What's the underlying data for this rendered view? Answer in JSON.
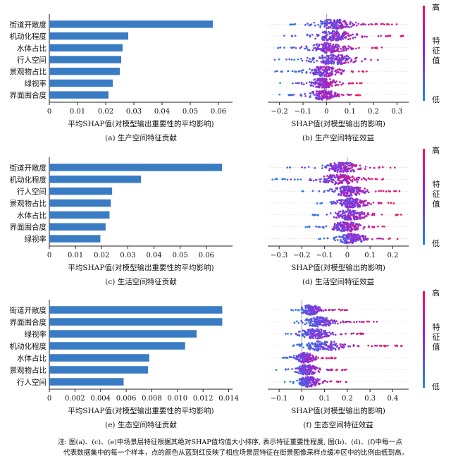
{
  "colors": {
    "bar": "#3a7cc4",
    "low": "#1f88e5",
    "high": "#ff0d57",
    "axis": "#222222"
  },
  "colorbar": {
    "high": "高",
    "mid_chars": [
      "特",
      "征",
      "值"
    ],
    "low": "低"
  },
  "note": [
    "注: 图(a)、(c)、(e)中场景层特征根据其绝对SHAP值均值大小排序, 表示特征重要性程度, 图(b)、(d)、(f)中每一点",
    "代表数据集中的每一个样本，点的颜色从蓝到红反映了相应场景层特征在街景图像采样点缓冲区中的比例由低到高。"
  ],
  "chart_data": [
    {
      "id": "a",
      "type": "bar",
      "caption": "(a) 生产空间特征贡献",
      "xlabel": "平均SHAP值(对模型输出重要性的平均影响)",
      "categories": [
        "街道开敞度",
        "机动化程度",
        "水体占比",
        "行人空间",
        "景观物占比",
        "绿视率",
        "界面围合度"
      ],
      "values": [
        0.058,
        0.028,
        0.026,
        0.0255,
        0.025,
        0.0225,
        0.021
      ],
      "xlim": [
        0,
        0.065
      ],
      "xticks": [
        0,
        0.01,
        0.02,
        0.03,
        0.04,
        0.05,
        0.06
      ],
      "xticklabels": [
        "0",
        "0.01",
        "0.02",
        "0.03",
        "0.04",
        "0.05",
        "0.06"
      ]
    },
    {
      "id": "b",
      "type": "scatter",
      "caption": "(b) 生产空间特征效益",
      "xlabel": "SHAP值(对模型输出的影响)",
      "features": [
        "街道开敞度",
        "机动化程度",
        "水体占比",
        "行人空间",
        "景观物占比",
        "绿视率",
        "界面围合度"
      ],
      "xlim": [
        -0.25,
        0.35
      ],
      "xticks": [
        -0.2,
        -0.1,
        0,
        0.1,
        0.2,
        0.3
      ],
      "xticklabels": [
        "−0.2",
        "−0.1",
        "0",
        "0.1",
        "0.2",
        "0.3"
      ],
      "ranges": [
        [
          -0.16,
          0.3
        ],
        [
          -0.2,
          0.33
        ],
        [
          -0.22,
          0.25
        ],
        [
          -0.22,
          0.35
        ],
        [
          -0.22,
          0.2
        ],
        [
          -0.2,
          0.15
        ],
        [
          -0.2,
          0.15
        ]
      ]
    },
    {
      "id": "c",
      "type": "bar",
      "caption": "(c) 生活空间特征贡献",
      "xlabel": "平均SHAP值(对模型输出重要性的平均影响)",
      "categories": [
        "街道开敞度",
        "机动化程度",
        "行人空间",
        "景观物占比",
        "水体占比",
        "界面围合度",
        "绿视率"
      ],
      "values": [
        0.066,
        0.035,
        0.024,
        0.0235,
        0.023,
        0.0215,
        0.0195
      ],
      "xlim": [
        0,
        0.07
      ],
      "xticks": [
        0,
        0.01,
        0.02,
        0.03,
        0.04,
        0.05,
        0.06
      ],
      "xticklabels": [
        "0",
        "0.01",
        "0.02",
        "0.03",
        "0.04",
        "0.05",
        "0.06"
      ]
    },
    {
      "id": "d",
      "type": "scatter",
      "caption": "(d) 生活空间特征效益",
      "xlabel": "SHAP值(对模型输出的影响)",
      "features": [
        "街道开敞度",
        "机动化程度",
        "行人空间",
        "景观物占比",
        "水体占比",
        "界面围合度",
        "绿视率"
      ],
      "xlim": [
        -0.35,
        0.27
      ],
      "xticks": [
        -0.3,
        -0.2,
        -0.1,
        0,
        0.1,
        0.2
      ],
      "xticklabels": [
        "−0.3",
        "−0.2",
        "−0.1",
        "0",
        "0.1",
        "0.2"
      ],
      "ranges": [
        [
          -0.3,
          0.24
        ],
        [
          -0.33,
          0.18
        ],
        [
          -0.2,
          0.23
        ],
        [
          -0.15,
          0.22
        ],
        [
          -0.2,
          0.25
        ],
        [
          -0.2,
          0.18
        ],
        [
          -0.15,
          0.23
        ]
      ]
    },
    {
      "id": "e",
      "type": "bar",
      "caption": "(e) 生态空间特征贡献",
      "xlabel": "平均SHAP值(对模型输出重要性的平均影响)",
      "categories": [
        "街道开敞度",
        "界面围合度",
        "绿视率",
        "机动化程度",
        "水体占比",
        "景观物占比",
        "行人空间"
      ],
      "values": [
        0.0135,
        0.0135,
        0.0115,
        0.0106,
        0.0078,
        0.0077,
        0.0058
      ],
      "xlim": [
        0,
        0.0143
      ],
      "xticks": [
        0,
        0.002,
        0.004,
        0.006,
        0.008,
        0.01,
        0.012,
        0.014
      ],
      "xticklabels": [
        "0",
        "0.002",
        "0.004",
        "0.006",
        "0.008",
        "0.010",
        "0.012",
        "0.014"
      ]
    },
    {
      "id": "f",
      "type": "scatter",
      "caption": "(f) 生态空间特征效益",
      "xlabel": "SHAP值(对模型输出的影响)",
      "features": [
        "街道开敞度",
        "界面围合度",
        "绿视率",
        "机动化程度",
        "水体占比",
        "景观物占比",
        "行人空间"
      ],
      "xlim": [
        -0.15,
        0.47
      ],
      "xticks": [
        -0.1,
        0,
        0.1,
        0.2,
        0.3,
        0.4
      ],
      "xticklabels": [
        "−0.1",
        "0",
        "0.1",
        "0.2",
        "0.3",
        "0.4"
      ],
      "ranges": [
        [
          -0.05,
          0.2
        ],
        [
          -0.05,
          0.35
        ],
        [
          -0.08,
          0.3
        ],
        [
          -0.06,
          0.44
        ],
        [
          -0.1,
          0.15
        ],
        [
          -0.12,
          0.2
        ],
        [
          -0.08,
          0.2
        ]
      ]
    }
  ]
}
